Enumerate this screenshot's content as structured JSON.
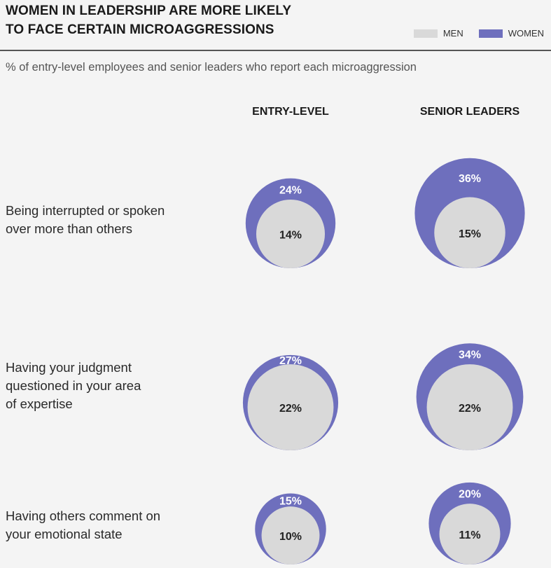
{
  "header": {
    "title_line1": "WOMEN IN LEADERSHIP ARE MORE LIKELY",
    "title_line2": "TO FACE CERTAIN MICROAGGRESSIONS",
    "subtitle": "% of entry-level employees and senior leaders who report each microaggression"
  },
  "legend": {
    "men_label": "MEN",
    "women_label": "WOMEN"
  },
  "colors": {
    "men": "#d9d9d9",
    "women": "#6e6fbd",
    "women_text": "#ffffff",
    "men_text": "#222222"
  },
  "chart_data": {
    "type": "nested-bubble",
    "title": "WOMEN IN LEADERSHIP ARE MORE LIKELY TO FACE CERTAIN MICROAGGRESSIONS",
    "subtitle": "% of entry-level employees and senior leaders who report each microaggression",
    "groups": [
      "ENTRY-LEVEL",
      "SENIOR LEADERS"
    ],
    "series": [
      {
        "name": "WOMEN"
      },
      {
        "name": "MEN"
      }
    ],
    "unit": "%",
    "rows": [
      {
        "label": "Being interrupted or spoken over more than others",
        "label_lines": [
          "Being interrupted or spoken",
          "over more than others"
        ],
        "entry_level": {
          "women": 24,
          "men": 14
        },
        "senior_leaders": {
          "women": 36,
          "men": 15
        }
      },
      {
        "label": "Having your judgment questioned in your area of expertise",
        "label_lines": [
          "Having your judgment",
          "questioned in your area",
          "of expertise"
        ],
        "entry_level": {
          "women": 27,
          "men": 22
        },
        "senior_leaders": {
          "women": 34,
          "men": 22
        }
      },
      {
        "label": "Having others comment on your emotional state",
        "label_lines": [
          "Having others comment on",
          "your emotional state"
        ],
        "entry_level": {
          "women": 15,
          "men": 10
        },
        "senior_leaders": {
          "women": 20,
          "men": 11
        }
      }
    ]
  }
}
